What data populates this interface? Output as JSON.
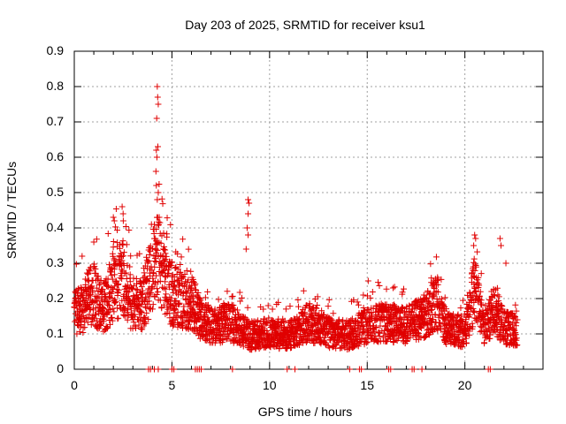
{
  "chart_data": {
    "type": "scatter",
    "title": "Day 203 of 2025, SRMTID for receiver ksu1",
    "xlabel": "GPS time / hours",
    "ylabel": "SRMTID / TECUs",
    "xlim": [
      0,
      24
    ],
    "ylim": [
      0,
      0.9
    ],
    "xticks": [
      "0",
      "5",
      "10",
      "15",
      "20"
    ],
    "yticks": [
      "0",
      "0.1",
      "0.2",
      "0.3",
      "0.4",
      "0.5",
      "0.6",
      "0.7",
      "0.8",
      "0.9"
    ],
    "grid": true,
    "marker": "+",
    "marker_color": "#e00000",
    "seed": 203,
    "level_profile": [
      [
        0.0,
        0.16
      ],
      [
        0.5,
        0.19
      ],
      [
        1.0,
        0.23
      ],
      [
        1.5,
        0.18
      ],
      [
        2.0,
        0.25
      ],
      [
        2.5,
        0.27
      ],
      [
        3.0,
        0.19
      ],
      [
        3.5,
        0.2
      ],
      [
        4.0,
        0.3
      ],
      [
        4.3,
        0.33
      ],
      [
        4.7,
        0.24
      ],
      [
        5.3,
        0.21
      ],
      [
        6.0,
        0.2
      ],
      [
        6.5,
        0.15
      ],
      [
        7.0,
        0.13
      ],
      [
        8.0,
        0.14
      ],
      [
        8.5,
        0.12
      ],
      [
        9.0,
        0.1
      ],
      [
        10.0,
        0.11
      ],
      [
        11.0,
        0.1
      ],
      [
        12.0,
        0.14
      ],
      [
        13.0,
        0.11
      ],
      [
        14.0,
        0.1
      ],
      [
        15.0,
        0.13
      ],
      [
        16.0,
        0.14
      ],
      [
        17.0,
        0.13
      ],
      [
        18.0,
        0.16
      ],
      [
        18.5,
        0.2
      ],
      [
        19.0,
        0.13
      ],
      [
        20.0,
        0.11
      ],
      [
        20.5,
        0.24
      ],
      [
        21.0,
        0.12
      ],
      [
        21.5,
        0.18
      ],
      [
        22.0,
        0.13
      ],
      [
        22.7,
        0.11
      ]
    ],
    "peak_points": [
      {
        "x": 4.25,
        "y": 0.8
      },
      {
        "x": 4.27,
        "y": 0.77
      },
      {
        "x": 4.3,
        "y": 0.75
      },
      {
        "x": 4.22,
        "y": 0.71
      },
      {
        "x": 4.2,
        "y": 0.62
      },
      {
        "x": 4.23,
        "y": 0.6
      },
      {
        "x": 4.28,
        "y": 0.63
      },
      {
        "x": 4.18,
        "y": 0.56
      },
      {
        "x": 4.2,
        "y": 0.52
      },
      {
        "x": 4.3,
        "y": 0.5
      },
      {
        "x": 4.25,
        "y": 0.48
      },
      {
        "x": 4.35,
        "y": 0.43
      },
      {
        "x": 2.45,
        "y": 0.46
      },
      {
        "x": 2.5,
        "y": 0.44
      },
      {
        "x": 2.0,
        "y": 0.43
      },
      {
        "x": 2.05,
        "y": 0.42
      },
      {
        "x": 3.95,
        "y": 0.41
      },
      {
        "x": 8.9,
        "y": 0.48
      },
      {
        "x": 8.95,
        "y": 0.47
      },
      {
        "x": 8.9,
        "y": 0.44
      },
      {
        "x": 8.85,
        "y": 0.4
      },
      {
        "x": 8.9,
        "y": 0.38
      },
      {
        "x": 8.8,
        "y": 0.34
      },
      {
        "x": 20.5,
        "y": 0.38
      },
      {
        "x": 20.55,
        "y": 0.37
      },
      {
        "x": 20.45,
        "y": 0.35
      },
      {
        "x": 21.8,
        "y": 0.37
      },
      {
        "x": 21.85,
        "y": 0.35
      },
      {
        "x": 22.1,
        "y": 0.3
      },
      {
        "x": 15.05,
        "y": 0.25
      },
      {
        "x": 1.0,
        "y": 0.36
      },
      {
        "x": 0.4,
        "y": 0.32
      },
      {
        "x": 18.6,
        "y": 0.26
      },
      {
        "x": 18.4,
        "y": 0.25
      }
    ],
    "zero_points_x": [
      3.8,
      3.9,
      4.1,
      4.3,
      5.0,
      5.1,
      6.2,
      6.3,
      6.4,
      6.5,
      8.1,
      10.9,
      11.3,
      14.1,
      14.6,
      14.7,
      16.1,
      16.2,
      17.3,
      17.4,
      17.8,
      21.2,
      21.3
    ]
  }
}
